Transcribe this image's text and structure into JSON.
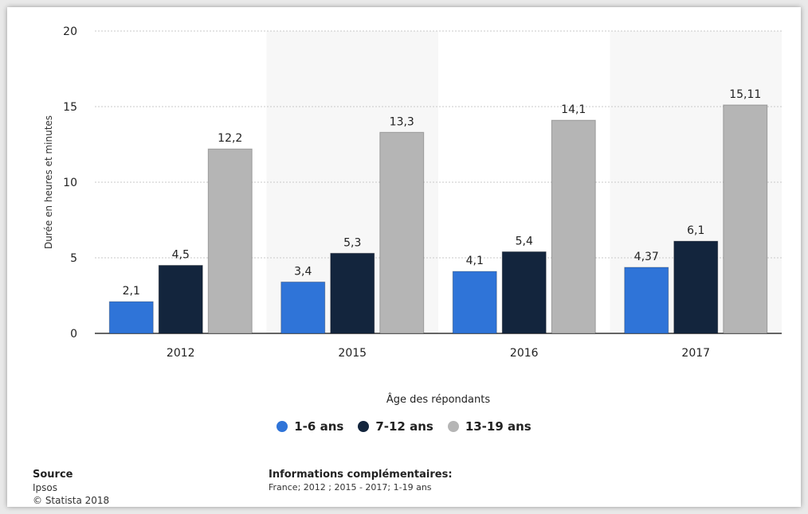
{
  "chart_data": {
    "type": "bar",
    "categories": [
      "2012",
      "2015",
      "2016",
      "2017"
    ],
    "series": [
      {
        "name": "1-6 ans",
        "color": "#2f74d8",
        "values": [
          2.1,
          3.4,
          4.1,
          4.37
        ],
        "labels": [
          "2,1",
          "3,4",
          "4,1",
          "4,37"
        ]
      },
      {
        "name": "7-12 ans",
        "color": "#13253d",
        "values": [
          4.5,
          5.3,
          5.4,
          6.1
        ],
        "labels": [
          "4,5",
          "5,3",
          "5,4",
          "6,1"
        ]
      },
      {
        "name": "13-19 ans",
        "color": "#b5b5b5",
        "values": [
          12.2,
          13.3,
          14.1,
          15.11
        ],
        "labels": [
          "12,2",
          "13,3",
          "14,1",
          "15,11"
        ]
      }
    ],
    "ylabel": "Durée en heures et minutes",
    "xlabel": "Âge des répondants",
    "ylim": [
      0,
      20
    ],
    "yticks": [
      "0",
      "5",
      "10",
      "15",
      "20"
    ],
    "grid": true,
    "legend_position": "bottom"
  },
  "source": {
    "heading": "Source",
    "line1": "Ipsos",
    "line2": "© Statista 2018"
  },
  "info": {
    "heading": "Informations complémentaires:",
    "text": "France; 2012 ; 2015 - 2017; 1-19 ans"
  }
}
